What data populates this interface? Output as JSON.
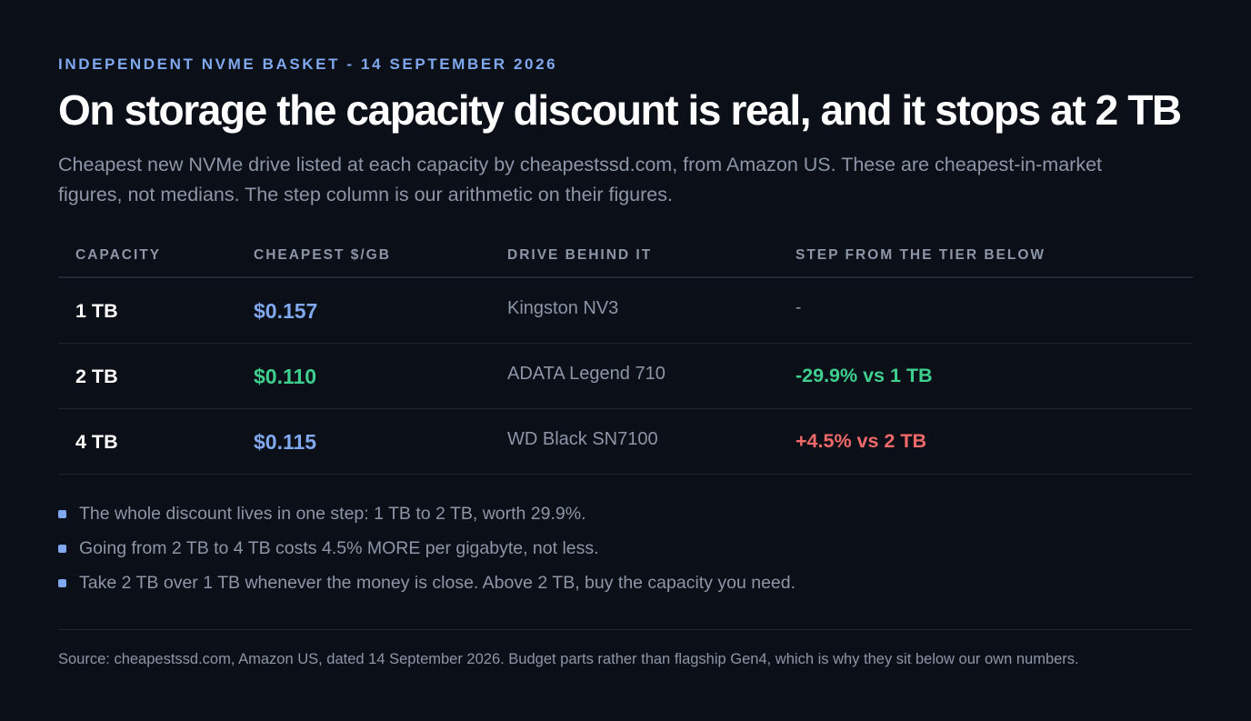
{
  "eyebrow": "INDEPENDENT NVME BASKET - 14 SEPTEMBER 2026",
  "title": "On storage the capacity discount is real, and it stops at 2 TB",
  "subtitle": "Cheapest new NVMe drive listed at each capacity by cheapestssd.com, from Amazon US. These are cheapest-in-market figures, not medians. The step column is our arithmetic on their figures.",
  "colors": {
    "neutral": "#7fa8ee",
    "positive": "#3ecf8e",
    "negative": "#f06a6a"
  },
  "chart_data": {
    "type": "table",
    "columns": [
      "CAPACITY",
      "CHEAPEST $/GB",
      "DRIVE BEHIND IT",
      "STEP FROM THE TIER BELOW"
    ],
    "rows": [
      {
        "capacity": "1 TB",
        "price": "$0.157",
        "price_value": 0.157,
        "price_tone": "neutral",
        "drive": "Kingston NV3",
        "step": "-",
        "step_tone": "muted"
      },
      {
        "capacity": "2 TB",
        "price": "$0.110",
        "price_value": 0.11,
        "price_tone": "positive",
        "drive": "ADATA Legend 710",
        "step": "-29.9% vs 1 TB",
        "step_tone": "positive"
      },
      {
        "capacity": "4 TB",
        "price": "$0.115",
        "price_value": 0.115,
        "price_tone": "neutral",
        "drive": "WD Black SN7100",
        "step": "+4.5% vs 2 TB",
        "step_tone": "negative"
      }
    ]
  },
  "notes": [
    "The whole discount lives in one step: 1 TB to 2 TB, worth 29.9%.",
    "Going from 2 TB to 4 TB costs 4.5% MORE per gigabyte, not less.",
    "Take 2 TB over 1 TB whenever the money is close. Above 2 TB, buy the capacity you need."
  ],
  "source": "Source: cheapestssd.com, Amazon US, dated 14 September 2026. Budget parts rather than flagship Gen4, which is why they sit below our own numbers."
}
